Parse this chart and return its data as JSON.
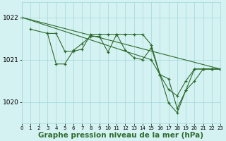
{
  "background_color": "#d5f2f2",
  "line_color": "#2d6a2d",
  "grid_color": "#a0d8d8",
  "xlabel": "Graphe pression niveau de la mer (hPa)",
  "xlabel_fontsize": 7.5,
  "ylim": [
    1019.5,
    1022.35
  ],
  "xlim": [
    0,
    23
  ],
  "yticks": [
    1020,
    1021,
    1022
  ],
  "xticks": [
    0,
    1,
    2,
    3,
    4,
    5,
    6,
    7,
    8,
    9,
    10,
    11,
    12,
    13,
    14,
    15,
    16,
    17,
    18,
    19,
    20,
    21,
    22,
    23
  ],
  "series": [
    {
      "x": [
        0,
        23
      ],
      "y": [
        1022.0,
        1020.78
      ]
    },
    {
      "x": [
        1,
        3,
        4,
        5,
        6,
        7,
        8,
        9,
        10,
        11,
        12,
        13,
        14,
        15,
        16,
        17,
        18,
        19,
        20,
        21,
        22,
        23
      ],
      "y": [
        1021.72,
        1021.62,
        1021.62,
        1021.2,
        1021.2,
        1021.25,
        1021.6,
        1021.6,
        1021.6,
        1021.6,
        1021.6,
        1021.6,
        1021.6,
        1021.35,
        1020.65,
        1020.3,
        1020.15,
        1020.5,
        1020.78,
        1020.78,
        1020.78,
        1020.78
      ]
    },
    {
      "x": [
        3,
        4,
        5,
        6,
        7,
        8,
        9,
        10,
        11,
        12,
        13,
        14,
        15,
        16,
        17,
        18,
        19,
        20,
        21,
        22,
        23
      ],
      "y": [
        1021.62,
        1020.9,
        1020.9,
        1021.22,
        1021.38,
        1021.55,
        1021.55,
        1021.18,
        1021.6,
        1021.22,
        1021.05,
        1021.0,
        1021.28,
        1020.65,
        1020.55,
        1019.85,
        1020.28,
        1020.78,
        1020.78,
        1020.78,
        1020.78
      ]
    },
    {
      "x": [
        0,
        15,
        16,
        17,
        18,
        19,
        20,
        21,
        22,
        23
      ],
      "y": [
        1022.0,
        1021.0,
        1020.65,
        1019.98,
        1019.75,
        1020.28,
        1020.5,
        1020.78,
        1020.78,
        1020.78
      ]
    }
  ]
}
